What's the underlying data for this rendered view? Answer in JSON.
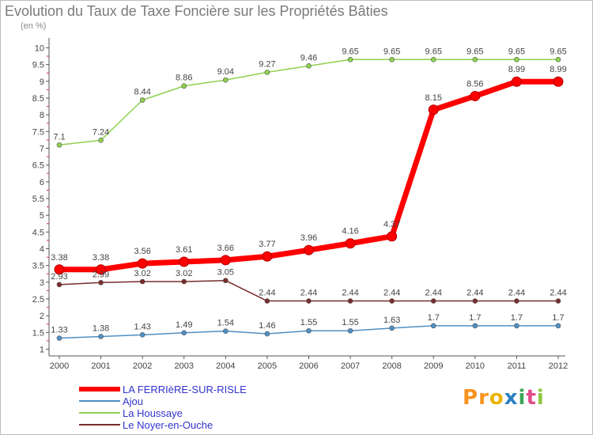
{
  "header": {
    "title": "Evolution du Taux de Taxe Foncière sur les Propriétés Bâties",
    "unit": "(en %)"
  },
  "logo": {
    "letters": [
      "P",
      "r",
      "o",
      "x",
      "i",
      "t",
      "i"
    ],
    "colors": [
      "#f7931e",
      "#f7931e",
      "#e8b400",
      "#2a7fc1",
      "#3aa657",
      "#e44b8d",
      "#8cc63f"
    ]
  },
  "chart_data": {
    "type": "line",
    "x": [
      "2000",
      "2001",
      "2002",
      "2003",
      "2004",
      "2005",
      "2006",
      "2007",
      "2008",
      "2009",
      "2010",
      "2011",
      "2012"
    ],
    "ylim": [
      0.8,
      10.2
    ],
    "yticks": [
      "1",
      "1.5",
      "2",
      "2.5",
      "3",
      "3.5",
      "4",
      "4.5",
      "5",
      "5.5",
      "6",
      "6.5",
      "7",
      "7.5",
      "8",
      "8.5",
      "9",
      "9.5",
      "10"
    ],
    "grid": false,
    "legend_position": "bottom-left",
    "series": [
      {
        "name": "LA FERRIèRE-SUR-RISLE",
        "color": "#ff0000",
        "values": [
          3.38,
          3.38,
          3.56,
          3.61,
          3.66,
          3.77,
          3.96,
          4.16,
          4.37,
          8.15,
          8.56,
          8.99,
          8.99
        ],
        "labels": [
          "3.38",
          "3.38",
          "3.56",
          "3.61",
          "3.66",
          "3.77",
          "3.96",
          "4.16",
          "4.37",
          "8.15",
          "8.56",
          "8.99",
          "8.99"
        ]
      },
      {
        "name": "Ajou",
        "color": "#4f8fc4",
        "values": [
          1.33,
          1.38,
          1.43,
          1.49,
          1.54,
          1.46,
          1.55,
          1.55,
          1.63,
          1.7,
          1.7,
          1.7,
          1.7
        ],
        "labels": [
          "1.33",
          "1.38",
          "1.43",
          "1.49",
          "1.54",
          "1.46",
          "1.55",
          "1.55",
          "1.63",
          "1.7",
          "1.7",
          "1.7",
          "1.7"
        ]
      },
      {
        "name": "La Houssaye",
        "color": "#8fd14f",
        "values": [
          7.1,
          7.24,
          8.44,
          8.86,
          9.04,
          9.27,
          9.46,
          9.65,
          9.65,
          9.65,
          9.65,
          9.65,
          9.65
        ],
        "labels": [
          "7.1",
          "7.24",
          "8.44",
          "8.86",
          "9.04",
          "9.27",
          "9.46",
          "9.65",
          "9.65",
          "9.65",
          "9.65",
          "9.65",
          "9.65"
        ]
      },
      {
        "name": "Le Noyer-en-Ouche",
        "color": "#7a2b2b",
        "values": [
          2.93,
          2.99,
          3.02,
          3.02,
          3.05,
          2.44,
          2.44,
          2.44,
          2.44,
          2.44,
          2.44,
          2.44,
          2.44
        ],
        "labels": [
          "2.93",
          "2.99",
          "3.02",
          "3.02",
          "3.05",
          "2.44",
          "2.44",
          "2.44",
          "2.44",
          "2.44",
          "2.44",
          "2.44",
          "2.44"
        ]
      }
    ]
  }
}
